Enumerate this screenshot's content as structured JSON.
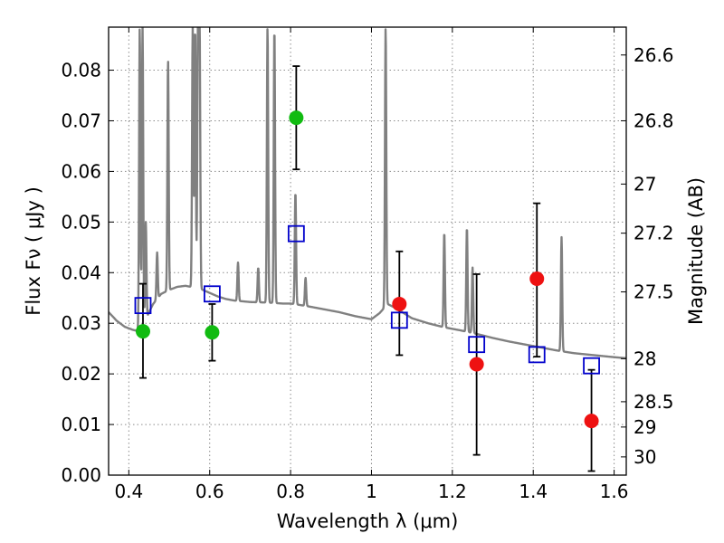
{
  "chart_data": {
    "type": "scatter",
    "xlabel": "Wavelength  λ (μm)",
    "ylabel": "Flux  Fν  ( μJy )",
    "y2label": "Magnitude (AB)",
    "xlim": [
      0.35,
      1.63
    ],
    "ylim": [
      0.0,
      0.0885
    ],
    "x_ticks": [
      0.4,
      0.6,
      0.8,
      1.0,
      1.2,
      1.4,
      1.6
    ],
    "x_tick_labels": [
      "0.4",
      "0.6",
      "0.8",
      "1",
      "1.2",
      "1.4",
      "1.6"
    ],
    "y_ticks": [
      0.0,
      0.01,
      0.02,
      0.03,
      0.04,
      0.05,
      0.06,
      0.07,
      0.08
    ],
    "y_tick_labels": [
      "0.00",
      "0.01",
      "0.02",
      "0.03",
      "0.04",
      "0.05",
      "0.06",
      "0.07",
      "0.08"
    ],
    "y2_tick_labels": [
      {
        "label": "26.6",
        "flux": 0.083
      },
      {
        "label": "26.8",
        "flux": 0.07
      },
      {
        "label": "27",
        "flux": 0.0575
      },
      {
        "label": "27.2",
        "flux": 0.0478
      },
      {
        "label": "27.5",
        "flux": 0.0362
      },
      {
        "label": "28",
        "flux": 0.023
      },
      {
        "label": "28.5",
        "flux": 0.0145
      },
      {
        "label": "29",
        "flux": 0.0095
      },
      {
        "label": "30",
        "flux": 0.0036
      }
    ],
    "grid": true,
    "colors": {
      "model_line": "#808080",
      "detected": "#11bb11",
      "undetected": "#ee1111",
      "model_points": "#0000cc",
      "error_bars": "#000000"
    },
    "series": [
      {
        "kind": "observed_detected",
        "points": [
          {
            "x": 0.435,
            "y": 0.0284,
            "err_low": 0.0192,
            "err_high": 0.0378
          },
          {
            "x": 0.606,
            "y": 0.0282,
            "err_low": 0.0226,
            "err_high": 0.0338
          },
          {
            "x": 0.814,
            "y": 0.0706,
            "err_low": 0.0604,
            "err_high": 0.0808
          }
        ]
      },
      {
        "kind": "observed_undetected",
        "points": [
          {
            "x": 1.069,
            "y": 0.0338,
            "err_low": 0.0237,
            "err_high": 0.0442
          },
          {
            "x": 1.26,
            "y": 0.0219,
            "err_low": 0.004,
            "err_high": 0.0397
          },
          {
            "x": 1.409,
            "y": 0.0388,
            "err_low": 0.0234,
            "err_high": 0.0537
          },
          {
            "x": 1.544,
            "y": 0.0107,
            "err_low": 0.0008,
            "err_high": 0.0208
          }
        ]
      },
      {
        "kind": "model_photometry",
        "points": [
          {
            "x": 0.435,
            "y": 0.0335
          },
          {
            "x": 0.606,
            "y": 0.0358
          },
          {
            "x": 0.814,
            "y": 0.0477
          },
          {
            "x": 1.069,
            "y": 0.0306
          },
          {
            "x": 1.26,
            "y": 0.0258
          },
          {
            "x": 1.409,
            "y": 0.0238
          },
          {
            "x": 1.544,
            "y": 0.0216
          }
        ]
      },
      {
        "kind": "model_spectrum",
        "x": [
          0.35,
          0.37,
          0.39,
          0.41,
          0.425,
          0.43,
          0.44,
          0.45,
          0.46,
          0.48,
          0.5,
          0.52,
          0.54,
          0.56,
          0.58,
          0.6,
          0.62,
          0.64,
          0.66,
          0.7,
          0.74,
          0.78,
          0.8,
          0.84,
          0.88,
          0.92,
          0.96,
          1.0,
          1.02,
          1.04,
          1.06,
          1.1,
          1.14,
          1.18,
          1.22,
          1.26,
          1.3,
          1.34,
          1.38,
          1.42,
          1.46,
          1.5,
          1.55,
          1.6,
          1.63
        ],
        "y": [
          0.0322,
          0.0305,
          0.0293,
          0.0287,
          0.0284,
          0.029,
          0.03,
          0.0322,
          0.0338,
          0.0358,
          0.0366,
          0.0372,
          0.0374,
          0.0371,
          0.0367,
          0.036,
          0.0353,
          0.0348,
          0.0345,
          0.0342,
          0.0341,
          0.0339,
          0.0339,
          0.0334,
          0.0328,
          0.0322,
          0.0314,
          0.0308,
          0.032,
          0.0338,
          0.033,
          0.031,
          0.03,
          0.0292,
          0.0286,
          0.0279,
          0.0271,
          0.0264,
          0.0258,
          0.0252,
          0.0246,
          0.0241,
          0.0237,
          0.0233,
          0.0231
        ],
        "emission_lines": [
          {
            "x": 0.427,
            "peak": 0.0885
          },
          {
            "x": 0.434,
            "peak": 0.0885
          },
          {
            "x": 0.442,
            "peak": 0.05
          },
          {
            "x": 0.47,
            "peak": 0.044
          },
          {
            "x": 0.497,
            "peak": 0.082
          },
          {
            "x": 0.558,
            "peak": 0.0885
          },
          {
            "x": 0.564,
            "peak": 0.0885
          },
          {
            "x": 0.571,
            "peak": 0.0885
          },
          {
            "x": 0.575,
            "peak": 0.0885
          },
          {
            "x": 0.67,
            "peak": 0.042
          },
          {
            "x": 0.72,
            "peak": 0.041
          },
          {
            "x": 0.743,
            "peak": 0.0885
          },
          {
            "x": 0.76,
            "peak": 0.0885
          },
          {
            "x": 0.812,
            "peak": 0.056
          },
          {
            "x": 0.837,
            "peak": 0.039
          },
          {
            "x": 1.035,
            "peak": 0.0885
          },
          {
            "x": 1.18,
            "peak": 0.048
          },
          {
            "x": 1.236,
            "peak": 0.049
          },
          {
            "x": 1.25,
            "peak": 0.041
          },
          {
            "x": 1.47,
            "peak": 0.047
          }
        ]
      }
    ]
  }
}
